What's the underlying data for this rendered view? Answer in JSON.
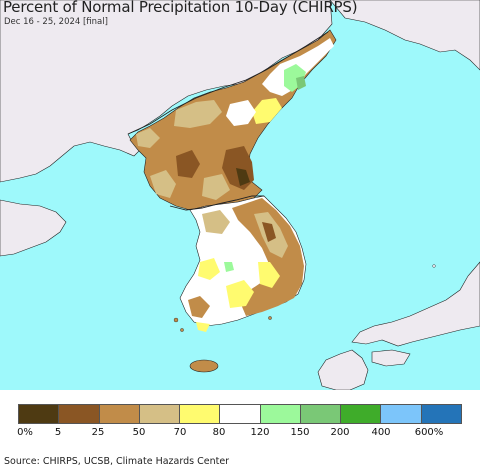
{
  "title": "Percent of Normal Precipitation 10-Day (CHIRPS)",
  "subtitle": "Dec 16 - 25, 2024 [final]",
  "source": "Source: CHIRPS, UCSB, Climate Hazards Center",
  "colors": {
    "ocean": "#9ef9fb",
    "land_other": "#eeeaf0",
    "border": "#222222"
  },
  "legend": {
    "colors": [
      "#4e3a12",
      "#8a5624",
      "#c18c49",
      "#d5bf86",
      "#fffb6f",
      "#ffffff",
      "#9cf99b",
      "#7ac876",
      "#3fac2a",
      "#7cc5fa",
      "#2474b8"
    ],
    "labels": [
      "0%",
      "5",
      "25",
      "50",
      "70",
      "80",
      "120",
      "150",
      "200",
      "400",
      "600%"
    ]
  }
}
